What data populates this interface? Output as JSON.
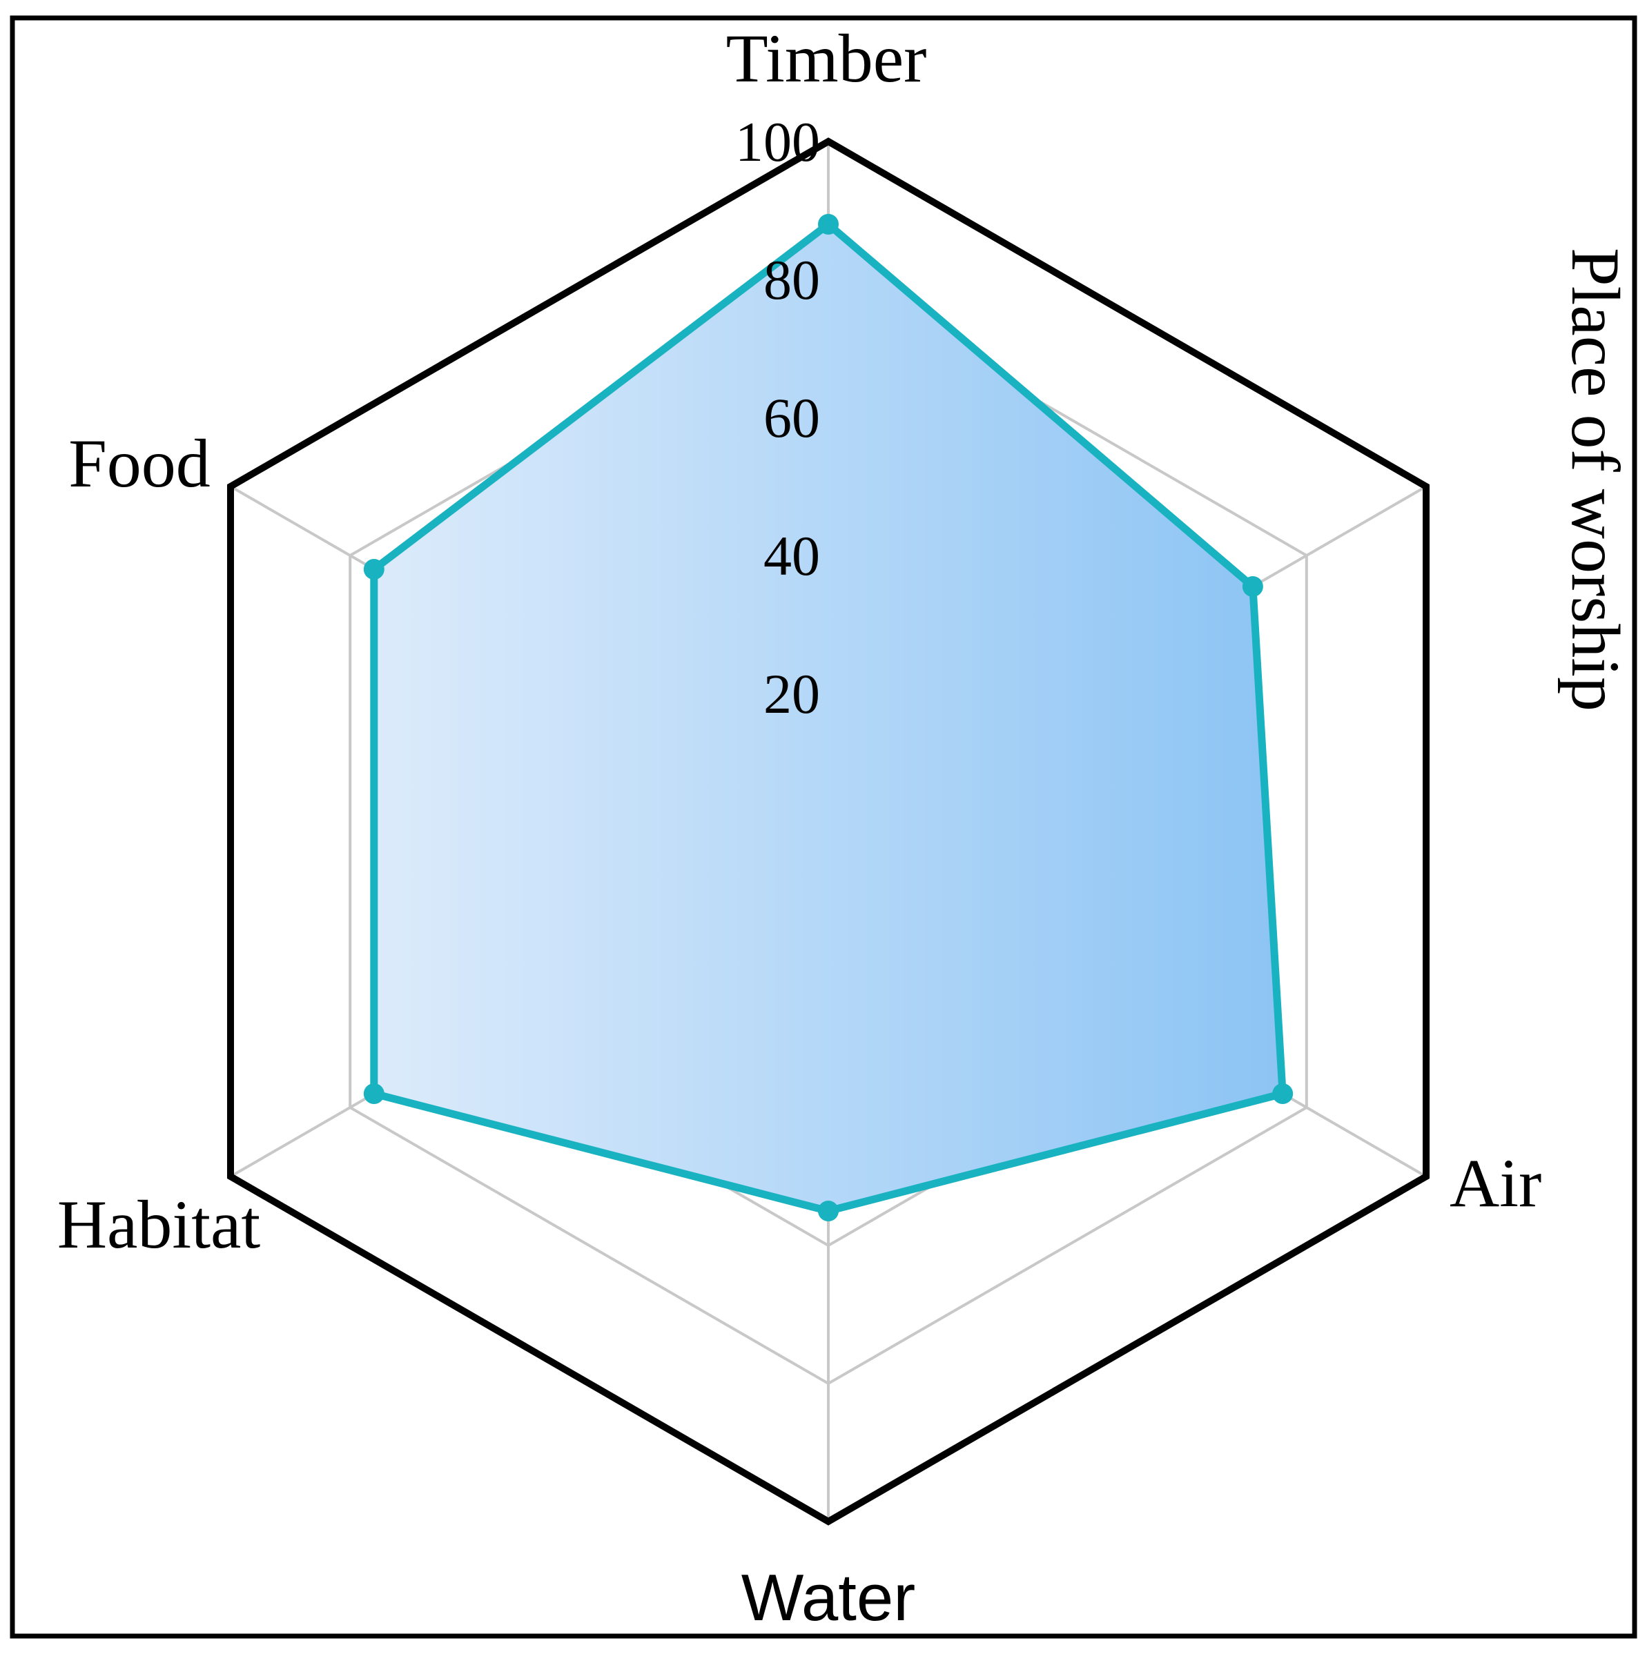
{
  "chart_data": {
    "type": "radar",
    "axes": [
      "Timber",
      "Place of worship",
      "Air",
      "Water",
      "Habitat",
      "Food"
    ],
    "series": [
      {
        "values": [
          88,
          71,
          76,
          55,
          76,
          76
        ]
      }
    ],
    "rlim": [
      0,
      100
    ],
    "ticks": [
      20,
      40,
      60,
      80,
      100
    ],
    "tick_labels": [
      "20",
      "40",
      "60",
      "80",
      "100"
    ],
    "grid": true,
    "legend": "none",
    "colors": {
      "line": "#19b2c0",
      "fill_start": "#dcebfb",
      "fill_end": "#8cc4f4",
      "grid": "#c8c8c8",
      "outer": "#000000",
      "frame": "#000000"
    }
  }
}
